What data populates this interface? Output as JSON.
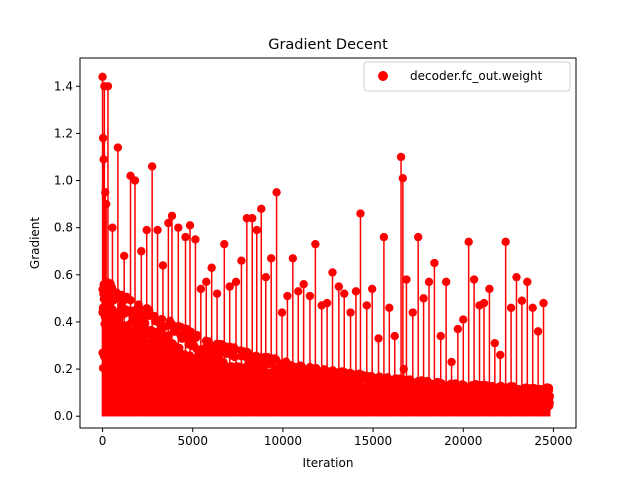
{
  "chart_data": {
    "type": "scatter",
    "title": "Gradient Decent",
    "xlabel": "Iteration",
    "ylabel": "Gradient",
    "xlim": [
      -1250,
      26250
    ],
    "ylim": [
      -0.05,
      1.52
    ],
    "xticks": [
      0,
      5000,
      10000,
      15000,
      20000,
      25000
    ],
    "xtick_labels": [
      "0",
      "5000",
      "10000",
      "15000",
      "20000",
      "25000"
    ],
    "yticks": [
      0.0,
      0.2,
      0.4,
      0.6,
      0.8,
      1.0,
      1.2,
      1.4
    ],
    "ytick_labels": [
      "0.0",
      "0.2",
      "0.4",
      "0.6",
      "0.8",
      "1.0",
      "1.2",
      "1.4"
    ],
    "grid": false,
    "legend_position": "top-right",
    "series": [
      {
        "name": "decoder.fc_out.weight",
        "color": "#ff0000",
        "marker": "circle",
        "stem_lines": true,
        "baseline_decay": {
          "start": 0.35,
          "end": 0.06,
          "x_end": 24800
        },
        "spikes_x": [
          0,
          30,
          60,
          100,
          150,
          200,
          300,
          550,
          850,
          1200,
          1550,
          1800,
          2150,
          2450,
          2750,
          3050,
          3350,
          3650,
          3850,
          4200,
          4600,
          4850,
          5150,
          5450,
          5750,
          6050,
          6350,
          6750,
          7050,
          7400,
          7700,
          8000,
          8300,
          8550,
          8800,
          9050,
          9350,
          9650,
          9950,
          10250,
          10550,
          10850,
          11150,
          11500,
          11800,
          12150,
          12450,
          12750,
          13100,
          13400,
          13750,
          14050,
          14300,
          14650,
          14950,
          15300,
          15600,
          15900,
          16200,
          16550,
          16650,
          16700,
          16850,
          17200,
          17500,
          17800,
          18100,
          18400,
          18750,
          19050,
          19350,
          19700,
          20000,
          20300,
          20600,
          20900,
          21150,
          21450,
          21750,
          22050,
          22350,
          22650,
          22950,
          23250,
          23550,
          23850,
          24150,
          24450,
          24750
        ],
        "spikes_y": [
          1.44,
          1.18,
          1.09,
          1.4,
          0.95,
          0.9,
          1.4,
          0.8,
          1.14,
          0.68,
          1.02,
          1.0,
          0.7,
          0.79,
          1.06,
          0.79,
          0.64,
          0.82,
          0.85,
          0.8,
          0.76,
          0.81,
          0.75,
          0.54,
          0.57,
          0.63,
          0.52,
          0.73,
          0.55,
          0.57,
          0.66,
          0.84,
          0.84,
          0.79,
          0.88,
          0.59,
          0.67,
          0.95,
          0.44,
          0.51,
          0.67,
          0.53,
          0.56,
          0.51,
          0.73,
          0.47,
          0.48,
          0.61,
          0.55,
          0.52,
          0.44,
          0.53,
          0.86,
          0.47,
          0.54,
          0.33,
          0.76,
          0.46,
          0.34,
          1.1,
          1.01,
          0.2,
          0.58,
          0.44,
          0.76,
          0.5,
          0.57,
          0.65,
          0.34,
          0.57,
          0.23,
          0.37,
          0.41,
          0.74,
          0.58,
          0.47,
          0.48,
          0.54,
          0.31,
          0.26,
          0.74,
          0.46,
          0.59,
          0.49,
          0.57,
          0.46,
          0.36,
          0.48,
          0.12
        ]
      }
    ]
  }
}
